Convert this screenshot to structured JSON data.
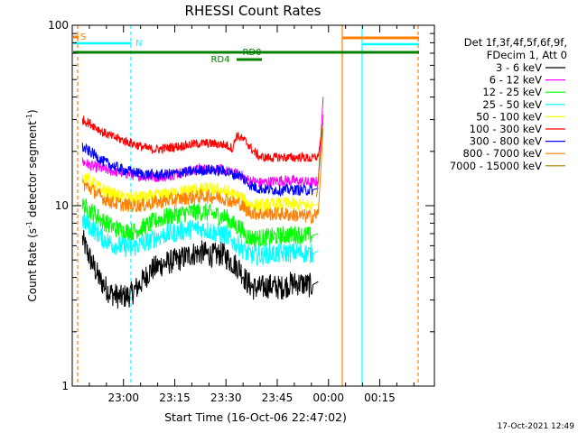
{
  "chart_data": {
    "type": "line",
    "title": "RHESSI Count Rates",
    "xlabel": "Start Time (16-Oct-06 22:47:02)",
    "ylabel_main": "Count Rate (s",
    "ylabel_sup1": "-1",
    "ylabel_mid": " detector segment",
    "ylabel_sup2": "-1",
    "ylabel_end": ")",
    "y_scale": "log",
    "ylim": [
      1,
      100
    ],
    "xlim_minutes": [
      -5,
      23
    ],
    "x_ticks": [
      {
        "t": 0,
        "label": "23:00"
      },
      {
        "t": 15,
        "label": "23:15"
      },
      {
        "t": 30,
        "label": "23:30"
      },
      {
        "t": 45,
        "label": "23:45"
      },
      {
        "t": 60,
        "label": "00:00"
      },
      {
        "t": 75,
        "label": "00:15"
      }
    ],
    "y_ticks": [
      {
        "v": 1,
        "label": "1"
      },
      {
        "v": 10,
        "label": "10"
      },
      {
        "v": 100,
        "label": "100"
      }
    ],
    "legend_header": [
      "Det 1f,3f,4f,5f,6f,9f,",
      "FDecim 1, Att 0"
    ],
    "series": [
      {
        "name": "3 - 6 keV",
        "color": "#000000",
        "x": [
          -12,
          -10,
          -7,
          -4,
          -1,
          2,
          5,
          8,
          11,
          14,
          17,
          20,
          23,
          26,
          29,
          32,
          34,
          36,
          38,
          40,
          43,
          46,
          49,
          52,
          55,
          57
        ],
        "y": [
          6.5,
          5.2,
          3.9,
          3.3,
          3.1,
          3.2,
          3.7,
          4.4,
          4.7,
          4.9,
          5.1,
          5.4,
          5.5,
          5.3,
          5.4,
          4.8,
          4.5,
          3.8,
          3.5,
          3.5,
          3.6,
          3.5,
          3.7,
          3.7,
          3.6,
          3.8
        ]
      },
      {
        "name": "6 - 12 keV",
        "color": "#ff00ff",
        "x": [
          -12,
          -9,
          -6,
          -3,
          0,
          3,
          6,
          9,
          12,
          15,
          18,
          21,
          24,
          27,
          30,
          32,
          34,
          36,
          38,
          40,
          43,
          46,
          49,
          52,
          55,
          57,
          58.5
        ],
        "y": [
          17.5,
          16.5,
          16,
          15.5,
          15.2,
          14.8,
          14.6,
          14.4,
          14.6,
          15,
          15.4,
          15.8,
          16,
          16,
          15.6,
          15,
          15,
          14,
          13.6,
          13.4,
          13.6,
          13.8,
          13.8,
          13.6,
          13.4,
          13.6,
          42
        ]
      },
      {
        "name": "12 - 25 keV",
        "color": "#00ff00",
        "x": [
          -12,
          -9,
          -6,
          -3,
          0,
          3,
          6,
          9,
          12,
          15,
          18,
          21,
          24,
          27,
          30,
          32,
          34,
          36,
          38,
          40,
          43,
          46,
          49,
          52,
          55,
          57
        ],
        "y": [
          10,
          9.2,
          8.2,
          7.6,
          7.2,
          7.2,
          7.6,
          8.2,
          8.6,
          8.9,
          9.1,
          9.3,
          9.2,
          8.9,
          8.6,
          7.9,
          7.6,
          6.8,
          6.6,
          6.6,
          6.7,
          6.8,
          6.9,
          6.9,
          6.8,
          7
        ]
      },
      {
        "name": "25 - 50 keV",
        "color": "#00ffff",
        "x": [
          -12,
          -9,
          -6,
          -3,
          0,
          3,
          6,
          9,
          12,
          15,
          18,
          21,
          24,
          27,
          30,
          32,
          34,
          36,
          38,
          40,
          43,
          46,
          49,
          52,
          55,
          57
        ],
        "y": [
          8.3,
          7.5,
          6.6,
          6.1,
          5.9,
          5.9,
          6.2,
          6.6,
          6.9,
          7.1,
          7.3,
          7.5,
          7.4,
          7.1,
          6.9,
          6.3,
          6.0,
          5.5,
          5.3,
          5.3,
          5.4,
          5.4,
          5.5,
          5.5,
          5.4,
          5.6
        ]
      },
      {
        "name": "50 - 100 keV",
        "color": "#ffff00",
        "x": [
          -12,
          -9,
          -6,
          -3,
          0,
          3,
          6,
          9,
          12,
          15,
          18,
          21,
          24,
          27,
          30,
          32,
          34,
          36,
          38,
          40,
          43,
          46,
          49,
          52,
          55,
          57
        ],
        "y": [
          14.5,
          13.3,
          12.2,
          11.5,
          11.1,
          11,
          11.1,
          11.3,
          11.5,
          11.7,
          12,
          12.3,
          12.4,
          12.2,
          12,
          11.5,
          11.3,
          10.4,
          10.1,
          10,
          10.1,
          10.2,
          10.2,
          10.1,
          10,
          10.2
        ]
      },
      {
        "name": "100 - 300 keV",
        "color": "#ff0000",
        "x": [
          -12,
          -9,
          -6,
          -3,
          0,
          3,
          6,
          9,
          12,
          15,
          18,
          21,
          24,
          27,
          30,
          32,
          33,
          34,
          36,
          38,
          40,
          43,
          46,
          49,
          52,
          55,
          57,
          58.5
        ],
        "y": [
          30,
          28,
          25.5,
          24,
          23,
          22,
          21,
          20.5,
          20.8,
          21.2,
          21.6,
          22,
          22.2,
          22,
          21.7,
          20.8,
          24.5,
          24,
          22.5,
          20,
          18.6,
          18.4,
          18.6,
          18.4,
          18.6,
          18.2,
          18.8,
          30
        ]
      },
      {
        "name": "300 - 800 keV",
        "color": "#0000ff",
        "x": [
          -12,
          -9,
          -6,
          -3,
          0,
          3,
          6,
          9,
          12,
          15,
          18,
          21,
          24,
          27,
          30,
          32,
          34,
          36,
          38,
          40,
          43,
          46,
          49,
          52,
          55,
          57
        ],
        "y": [
          21,
          19.5,
          17.6,
          16.6,
          15.8,
          15.3,
          15,
          14.8,
          14.9,
          15.1,
          15.3,
          15.6,
          15.8,
          15.7,
          15.5,
          14.9,
          14.8,
          13.5,
          12.7,
          12.4,
          12.3,
          12.2,
          12.3,
          12.2,
          12.2,
          12.5
        ]
      },
      {
        "name": "800 - 7000 keV",
        "color": "#ff8000",
        "x": [
          -12,
          -9,
          -6,
          -3,
          0,
          3,
          6,
          9,
          12,
          15,
          18,
          21,
          24,
          27,
          30,
          32,
          34,
          36,
          38,
          40,
          43,
          46,
          49,
          52,
          55,
          57,
          58.5
        ],
        "y": [
          13.2,
          12.2,
          11,
          10.4,
          10.1,
          10,
          10.1,
          10.4,
          10.6,
          10.8,
          11,
          11.2,
          11.3,
          11.2,
          10.9,
          10.5,
          10.3,
          9.4,
          9.1,
          9.0,
          9.0,
          9.0,
          8.9,
          8.8,
          8.7,
          9.0,
          28
        ]
      },
      {
        "name": "7000 - 15000 keV",
        "color": "#a08000",
        "x": [
          56.5,
          57.5,
          58.5
        ],
        "y": [
          11,
          18,
          32
        ]
      }
    ],
    "annotations": [
      {
        "text": "S",
        "color": "#ff8000"
      },
      {
        "text": "N",
        "color": "#00ffff"
      },
      {
        "text": "RD0",
        "color": "#008000"
      },
      {
        "text": "RD4",
        "color": "#008000"
      }
    ],
    "grid": false,
    "legend_position": "right"
  },
  "footer": {
    "timestamp": "17-Oct-2021 12:49"
  }
}
